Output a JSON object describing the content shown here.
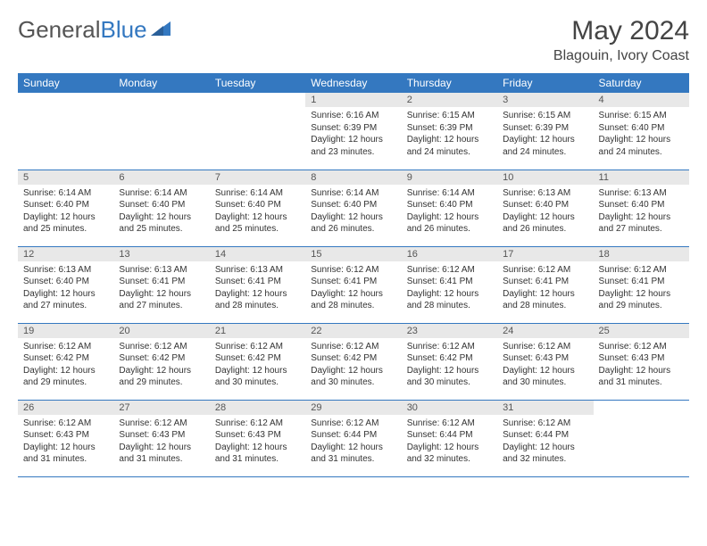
{
  "brand": {
    "part1": "General",
    "part2": "Blue"
  },
  "title": "May 2024",
  "location": "Blagouin, Ivory Coast",
  "colors": {
    "header_bg": "#3478c0",
    "header_text": "#ffffff",
    "daynum_bg": "#e8e8e8",
    "border": "#3478c0",
    "body_text": "#333333"
  },
  "weekdays": [
    "Sunday",
    "Monday",
    "Tuesday",
    "Wednesday",
    "Thursday",
    "Friday",
    "Saturday"
  ],
  "weeks": [
    [
      {
        "n": "",
        "sr": "",
        "ss": "",
        "dl": ""
      },
      {
        "n": "",
        "sr": "",
        "ss": "",
        "dl": ""
      },
      {
        "n": "",
        "sr": "",
        "ss": "",
        "dl": ""
      },
      {
        "n": "1",
        "sr": "Sunrise: 6:16 AM",
        "ss": "Sunset: 6:39 PM",
        "dl": "Daylight: 12 hours and 23 minutes."
      },
      {
        "n": "2",
        "sr": "Sunrise: 6:15 AM",
        "ss": "Sunset: 6:39 PM",
        "dl": "Daylight: 12 hours and 24 minutes."
      },
      {
        "n": "3",
        "sr": "Sunrise: 6:15 AM",
        "ss": "Sunset: 6:39 PM",
        "dl": "Daylight: 12 hours and 24 minutes."
      },
      {
        "n": "4",
        "sr": "Sunrise: 6:15 AM",
        "ss": "Sunset: 6:40 PM",
        "dl": "Daylight: 12 hours and 24 minutes."
      }
    ],
    [
      {
        "n": "5",
        "sr": "Sunrise: 6:14 AM",
        "ss": "Sunset: 6:40 PM",
        "dl": "Daylight: 12 hours and 25 minutes."
      },
      {
        "n": "6",
        "sr": "Sunrise: 6:14 AM",
        "ss": "Sunset: 6:40 PM",
        "dl": "Daylight: 12 hours and 25 minutes."
      },
      {
        "n": "7",
        "sr": "Sunrise: 6:14 AM",
        "ss": "Sunset: 6:40 PM",
        "dl": "Daylight: 12 hours and 25 minutes."
      },
      {
        "n": "8",
        "sr": "Sunrise: 6:14 AM",
        "ss": "Sunset: 6:40 PM",
        "dl": "Daylight: 12 hours and 26 minutes."
      },
      {
        "n": "9",
        "sr": "Sunrise: 6:14 AM",
        "ss": "Sunset: 6:40 PM",
        "dl": "Daylight: 12 hours and 26 minutes."
      },
      {
        "n": "10",
        "sr": "Sunrise: 6:13 AM",
        "ss": "Sunset: 6:40 PM",
        "dl": "Daylight: 12 hours and 26 minutes."
      },
      {
        "n": "11",
        "sr": "Sunrise: 6:13 AM",
        "ss": "Sunset: 6:40 PM",
        "dl": "Daylight: 12 hours and 27 minutes."
      }
    ],
    [
      {
        "n": "12",
        "sr": "Sunrise: 6:13 AM",
        "ss": "Sunset: 6:40 PM",
        "dl": "Daylight: 12 hours and 27 minutes."
      },
      {
        "n": "13",
        "sr": "Sunrise: 6:13 AM",
        "ss": "Sunset: 6:41 PM",
        "dl": "Daylight: 12 hours and 27 minutes."
      },
      {
        "n": "14",
        "sr": "Sunrise: 6:13 AM",
        "ss": "Sunset: 6:41 PM",
        "dl": "Daylight: 12 hours and 28 minutes."
      },
      {
        "n": "15",
        "sr": "Sunrise: 6:12 AM",
        "ss": "Sunset: 6:41 PM",
        "dl": "Daylight: 12 hours and 28 minutes."
      },
      {
        "n": "16",
        "sr": "Sunrise: 6:12 AM",
        "ss": "Sunset: 6:41 PM",
        "dl": "Daylight: 12 hours and 28 minutes."
      },
      {
        "n": "17",
        "sr": "Sunrise: 6:12 AM",
        "ss": "Sunset: 6:41 PM",
        "dl": "Daylight: 12 hours and 28 minutes."
      },
      {
        "n": "18",
        "sr": "Sunrise: 6:12 AM",
        "ss": "Sunset: 6:41 PM",
        "dl": "Daylight: 12 hours and 29 minutes."
      }
    ],
    [
      {
        "n": "19",
        "sr": "Sunrise: 6:12 AM",
        "ss": "Sunset: 6:42 PM",
        "dl": "Daylight: 12 hours and 29 minutes."
      },
      {
        "n": "20",
        "sr": "Sunrise: 6:12 AM",
        "ss": "Sunset: 6:42 PM",
        "dl": "Daylight: 12 hours and 29 minutes."
      },
      {
        "n": "21",
        "sr": "Sunrise: 6:12 AM",
        "ss": "Sunset: 6:42 PM",
        "dl": "Daylight: 12 hours and 30 minutes."
      },
      {
        "n": "22",
        "sr": "Sunrise: 6:12 AM",
        "ss": "Sunset: 6:42 PM",
        "dl": "Daylight: 12 hours and 30 minutes."
      },
      {
        "n": "23",
        "sr": "Sunrise: 6:12 AM",
        "ss": "Sunset: 6:42 PM",
        "dl": "Daylight: 12 hours and 30 minutes."
      },
      {
        "n": "24",
        "sr": "Sunrise: 6:12 AM",
        "ss": "Sunset: 6:43 PM",
        "dl": "Daylight: 12 hours and 30 minutes."
      },
      {
        "n": "25",
        "sr": "Sunrise: 6:12 AM",
        "ss": "Sunset: 6:43 PM",
        "dl": "Daylight: 12 hours and 31 minutes."
      }
    ],
    [
      {
        "n": "26",
        "sr": "Sunrise: 6:12 AM",
        "ss": "Sunset: 6:43 PM",
        "dl": "Daylight: 12 hours and 31 minutes."
      },
      {
        "n": "27",
        "sr": "Sunrise: 6:12 AM",
        "ss": "Sunset: 6:43 PM",
        "dl": "Daylight: 12 hours and 31 minutes."
      },
      {
        "n": "28",
        "sr": "Sunrise: 6:12 AM",
        "ss": "Sunset: 6:43 PM",
        "dl": "Daylight: 12 hours and 31 minutes."
      },
      {
        "n": "29",
        "sr": "Sunrise: 6:12 AM",
        "ss": "Sunset: 6:44 PM",
        "dl": "Daylight: 12 hours and 31 minutes."
      },
      {
        "n": "30",
        "sr": "Sunrise: 6:12 AM",
        "ss": "Sunset: 6:44 PM",
        "dl": "Daylight: 12 hours and 32 minutes."
      },
      {
        "n": "31",
        "sr": "Sunrise: 6:12 AM",
        "ss": "Sunset: 6:44 PM",
        "dl": "Daylight: 12 hours and 32 minutes."
      },
      {
        "n": "",
        "sr": "",
        "ss": "",
        "dl": ""
      }
    ]
  ]
}
